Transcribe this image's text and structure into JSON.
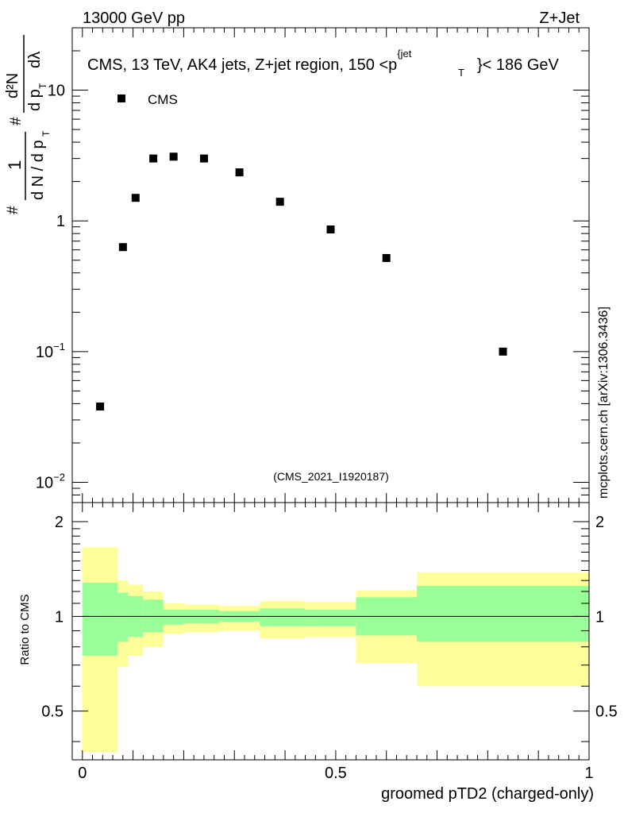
{
  "header": {
    "energy_label": "13000 GeV pp",
    "process_label": "Z+Jet"
  },
  "watermark": "mcplots.cern.ch [arXiv:1306.3436]",
  "chart_data": [
    {
      "type": "scatter",
      "panel": "main",
      "title": "CMS, 13 TeV, AK4 jets, Z+jet region, 150 <p_T^{jet}< 186 GeV",
      "title_parts": {
        "pre": "CMS, 13 TeV, AK4 jets, Z+jet region, 150 <p",
        "sup": "{jet",
        "sub": "T",
        "post": "}< 186 GeV"
      },
      "ylabel_parts": {
        "hash": "#",
        "one": "1",
        "den": "d N / d p",
        "den_sub": "T",
        "hash2": "#",
        "num": "d²N",
        "num_den": "d p",
        "num_den_sub": "T",
        "lambda": "dλ"
      },
      "yscale": "log",
      "ylim": [
        0.007,
        30
      ],
      "xlim": [
        -0.02,
        1.0
      ],
      "y_ticks": [
        {
          "value": 0.01,
          "label_base": "10",
          "label_exp": "−2"
        },
        {
          "value": 0.1,
          "label_base": "10",
          "label_exp": "−1"
        },
        {
          "value": 1,
          "label_base": "1",
          "label_exp": ""
        },
        {
          "value": 10,
          "label_base": "10",
          "label_exp": ""
        }
      ],
      "legend": {
        "entry": "CMS",
        "placement": "top-left"
      },
      "analysis_tag": "(CMS_2021_I1920187)",
      "series": [
        {
          "name": "CMS",
          "x": [
            0.035,
            0.08,
            0.105,
            0.14,
            0.18,
            0.24,
            0.31,
            0.39,
            0.49,
            0.6,
            0.83
          ],
          "y": [
            0.038,
            0.63,
            1.5,
            3.0,
            3.1,
            3.0,
            2.35,
            1.4,
            0.86,
            0.52,
            0.1
          ]
        }
      ]
    },
    {
      "type": "area",
      "panel": "ratio",
      "ylabel": "Ratio to CMS",
      "xlabel": "groomed pTD2 (charged-only)",
      "xlim": [
        -0.02,
        1.0
      ],
      "ylim": [
        0.35,
        2.3
      ],
      "x_ticks": [
        {
          "value": 0,
          "label": "0"
        },
        {
          "value": 0.5,
          "label": "0.5"
        },
        {
          "value": 1,
          "label": "1"
        }
      ],
      "y_ticks": [
        {
          "value": 0.5,
          "label": "0.5"
        },
        {
          "value": 1,
          "label": "1"
        },
        {
          "value": 2,
          "label": "2"
        }
      ],
      "reference_line": 1,
      "bins": [
        {
          "x0": 0.0,
          "x1": 0.07,
          "inner": [
            0.75,
            1.28
          ],
          "outer": [
            0.37,
            1.66
          ]
        },
        {
          "x0": 0.07,
          "x1": 0.09,
          "inner": [
            0.83,
            1.19
          ],
          "outer": [
            0.69,
            1.3
          ]
        },
        {
          "x0": 0.09,
          "x1": 0.12,
          "inner": [
            0.86,
            1.16
          ],
          "outer": [
            0.75,
            1.26
          ]
        },
        {
          "x0": 0.12,
          "x1": 0.16,
          "inner": [
            0.89,
            1.13
          ],
          "outer": [
            0.8,
            1.2
          ]
        },
        {
          "x0": 0.16,
          "x1": 0.2,
          "inner": [
            0.94,
            1.05
          ],
          "outer": [
            0.88,
            1.1
          ]
        },
        {
          "x0": 0.2,
          "x1": 0.27,
          "inner": [
            0.95,
            1.05
          ],
          "outer": [
            0.89,
            1.09
          ]
        },
        {
          "x0": 0.27,
          "x1": 0.35,
          "inner": [
            0.96,
            1.04
          ],
          "outer": [
            0.9,
            1.08
          ]
        },
        {
          "x0": 0.35,
          "x1": 0.44,
          "inner": [
            0.93,
            1.06
          ],
          "outer": [
            0.85,
            1.12
          ]
        },
        {
          "x0": 0.44,
          "x1": 0.54,
          "inner": [
            0.93,
            1.05
          ],
          "outer": [
            0.86,
            1.11
          ]
        },
        {
          "x0": 0.54,
          "x1": 0.66,
          "inner": [
            0.87,
            1.15
          ],
          "outer": [
            0.71,
            1.21
          ]
        },
        {
          "x0": 0.66,
          "x1": 1.0,
          "inner": [
            0.83,
            1.25
          ],
          "outer": [
            0.6,
            1.38
          ]
        }
      ]
    }
  ],
  "colors": {
    "inner_band": "#99ff99",
    "outer_band": "#ffff99",
    "marker": "#000000",
    "frame": "#000000",
    "analysis_tag": "#999999",
    "watermark": "#888888"
  }
}
